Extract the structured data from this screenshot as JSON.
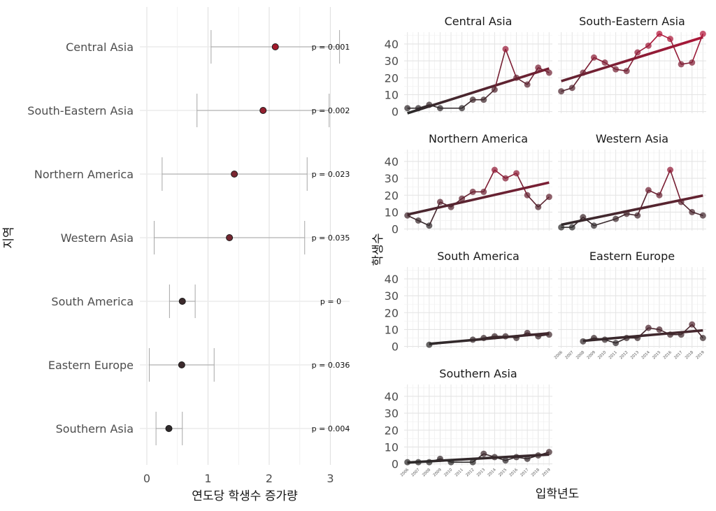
{
  "chart_data": [
    {
      "type": "scatter",
      "subtype": "forest-plot",
      "xlabel": "연도당 학생수 증가량",
      "ylabel": "지역",
      "xlim": [
        0,
        3.2
      ],
      "x_ticks": [
        "0",
        "1",
        "2",
        "3"
      ],
      "grid": true,
      "regions": [
        {
          "name": "Central Asia",
          "estimate": 2.1,
          "ci": [
            1.05,
            3.15
          ],
          "p_label": "p = 0.001",
          "color": "#a31a2c"
        },
        {
          "name": "South-Eastern Asia",
          "estimate": 1.9,
          "ci": [
            0.82,
            2.98
          ],
          "p_label": "p = 0.002",
          "color": "#931f2e"
        },
        {
          "name": "Northern America",
          "estimate": 1.43,
          "ci": [
            0.25,
            2.62
          ],
          "p_label": "p = 0.023",
          "color": "#7a2630"
        },
        {
          "name": "Western Asia",
          "estimate": 1.35,
          "ci": [
            0.12,
            2.58
          ],
          "p_label": "p = 0.035",
          "color": "#732731"
        },
        {
          "name": "South America",
          "estimate": 0.58,
          "ci": [
            0.37,
            0.79
          ],
          "p_label": "p = 0",
          "color": "#3c2a2c"
        },
        {
          "name": "Eastern Europe",
          "estimate": 0.57,
          "ci": [
            0.04,
            1.1
          ],
          "p_label": "p = 0.036",
          "color": "#3c2a2c"
        },
        {
          "name": "Southern Asia",
          "estimate": 0.36,
          "ci": [
            0.15,
            0.58
          ],
          "p_label": "p = 0.004",
          "color": "#2e2a2b"
        }
      ]
    },
    {
      "type": "line",
      "subtype": "small-multiples",
      "xlabel": "입학년도",
      "ylabel": "학생수",
      "ylim": [
        -1,
        47
      ],
      "y_ticks": [
        "0",
        "10",
        "20",
        "30",
        "40"
      ],
      "x_tick_labels": [
        "2006",
        "2007",
        "2008",
        "2009",
        "2010",
        "2011",
        "2012",
        "2013",
        "2014",
        "2015",
        "2016",
        "2017",
        "2018",
        "2019"
      ],
      "color_low": "#2b2b2b",
      "color_high": "#b3163a",
      "panels": [
        {
          "title": "Central Asia",
          "points": [
            [
              2006,
              2
            ],
            [
              2007,
              2
            ],
            [
              2008,
              4
            ],
            [
              2009,
              2
            ],
            [
              2011,
              2
            ],
            [
              2012,
              7
            ],
            [
              2013,
              7
            ],
            [
              2014,
              13
            ],
            [
              2015,
              37
            ],
            [
              2016,
              20
            ],
            [
              2017,
              16
            ],
            [
              2018,
              26
            ],
            [
              2019,
              23
            ]
          ],
          "trend": [
            [
              2006,
              -1
            ],
            [
              2019,
              25.5
            ]
          ]
        },
        {
          "title": "South-Eastern Asia",
          "points": [
            [
              2006,
              12
            ],
            [
              2007,
              14
            ],
            [
              2008,
              23
            ],
            [
              2009,
              32
            ],
            [
              2010,
              29
            ],
            [
              2011,
              25
            ],
            [
              2012,
              24
            ],
            [
              2013,
              35
            ],
            [
              2014,
              39
            ],
            [
              2015,
              46
            ],
            [
              2016,
              43
            ],
            [
              2017,
              28
            ],
            [
              2018,
              29
            ],
            [
              2019,
              46
            ]
          ],
          "trend": [
            [
              2006,
              18
            ],
            [
              2019,
              44
            ]
          ]
        },
        {
          "title": "Northern America",
          "points": [
            [
              2006,
              8
            ],
            [
              2007,
              5
            ],
            [
              2008,
              2
            ],
            [
              2009,
              16
            ],
            [
              2010,
              13
            ],
            [
              2011,
              18
            ],
            [
              2012,
              22
            ],
            [
              2013,
              22
            ],
            [
              2014,
              35
            ],
            [
              2015,
              30
            ],
            [
              2016,
              33
            ],
            [
              2017,
              20
            ],
            [
              2018,
              13
            ],
            [
              2019,
              19
            ]
          ],
          "trend": [
            [
              2006,
              8.5
            ],
            [
              2019,
              27.5
            ]
          ]
        },
        {
          "title": "Western Asia",
          "points": [
            [
              2006,
              1
            ],
            [
              2007,
              1
            ],
            [
              2008,
              7
            ],
            [
              2009,
              2
            ],
            [
              2011,
              6
            ],
            [
              2012,
              9
            ],
            [
              2013,
              8
            ],
            [
              2014,
              23
            ],
            [
              2015,
              20
            ],
            [
              2016,
              35
            ],
            [
              2017,
              16
            ],
            [
              2018,
              10
            ],
            [
              2019,
              8
            ]
          ],
          "trend": [
            [
              2006,
              2.5
            ],
            [
              2019,
              19.8
            ]
          ]
        },
        {
          "title": "South America",
          "points": [
            [
              2008,
              1
            ],
            [
              2012,
              4
            ],
            [
              2013,
              5
            ],
            [
              2014,
              6
            ],
            [
              2015,
              6
            ],
            [
              2016,
              5
            ],
            [
              2017,
              8
            ],
            [
              2018,
              6
            ],
            [
              2019,
              7
            ]
          ],
          "trend": [
            [
              2008,
              1.5
            ],
            [
              2019,
              7.8
            ]
          ]
        },
        {
          "title": "Eastern Europe",
          "points": [
            [
              2008,
              3
            ],
            [
              2009,
              5
            ],
            [
              2010,
              4
            ],
            [
              2011,
              2
            ],
            [
              2012,
              5
            ],
            [
              2013,
              5
            ],
            [
              2014,
              11
            ],
            [
              2015,
              10
            ],
            [
              2016,
              7
            ],
            [
              2017,
              7
            ],
            [
              2018,
              13
            ],
            [
              2019,
              5
            ]
          ],
          "trend": [
            [
              2008,
              3.3
            ],
            [
              2019,
              9.5
            ]
          ]
        },
        {
          "title": "Southern Asia",
          "points": [
            [
              2006,
              1
            ],
            [
              2007,
              1
            ],
            [
              2008,
              1
            ],
            [
              2009,
              3
            ],
            [
              2010,
              1
            ],
            [
              2012,
              1
            ],
            [
              2013,
              6
            ],
            [
              2014,
              4
            ],
            [
              2015,
              2
            ],
            [
              2016,
              4
            ],
            [
              2017,
              3
            ],
            [
              2018,
              5
            ],
            [
              2019,
              7
            ]
          ],
          "trend": [
            [
              2006,
              0.8
            ],
            [
              2019,
              5.5
            ]
          ]
        }
      ]
    }
  ]
}
